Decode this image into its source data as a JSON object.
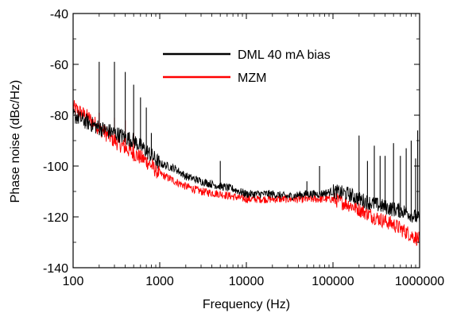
{
  "chart_data": {
    "type": "line",
    "xlabel": "Frequency (Hz)",
    "ylabel": "Phase noise (dBc/Hz)",
    "x_scale": "log",
    "xlim": [
      100,
      1000000
    ],
    "ylim": [
      -140,
      -40
    ],
    "x_ticks": [
      100,
      1000,
      10000,
      100000,
      1000000
    ],
    "x_tick_labels": [
      "100",
      "1000",
      "10000",
      "100000",
      "1000000"
    ],
    "y_ticks": [
      -140,
      -120,
      -100,
      -80,
      -60,
      -40
    ],
    "y_tick_labels": [
      "-140",
      "-120",
      "-100",
      "-80",
      "-60",
      "-40"
    ],
    "grid": false,
    "legend_position": "top-right",
    "series": [
      {
        "name": "DML 40 mA bias",
        "color": "#000000",
        "points": [
          [
            100,
            -80
          ],
          [
            150,
            -83
          ],
          [
            200,
            -85
          ],
          [
            300,
            -87
          ],
          [
            500,
            -90
          ],
          [
            700,
            -94
          ],
          [
            1000,
            -99
          ],
          [
            1500,
            -101
          ],
          [
            2000,
            -104
          ],
          [
            3000,
            -106
          ],
          [
            5000,
            -108
          ],
          [
            7000,
            -109
          ],
          [
            10000,
            -111
          ],
          [
            20000,
            -111
          ],
          [
            30000,
            -112
          ],
          [
            50000,
            -111
          ],
          [
            70000,
            -111
          ],
          [
            100000,
            -110
          ],
          [
            150000,
            -111
          ],
          [
            200000,
            -113
          ],
          [
            300000,
            -115
          ],
          [
            500000,
            -117
          ],
          [
            700000,
            -118
          ],
          [
            1000000,
            -121
          ]
        ],
        "spurs": [
          [
            200,
            -59
          ],
          [
            300,
            -59
          ],
          [
            400,
            -63
          ],
          [
            500,
            -68
          ],
          [
            600,
            -73
          ],
          [
            700,
            -77
          ],
          [
            800,
            -87
          ],
          [
            5000,
            -98
          ],
          [
            50000,
            -106
          ],
          [
            70000,
            -100
          ],
          [
            200000,
            -88
          ],
          [
            250000,
            -98
          ],
          [
            300000,
            -92
          ],
          [
            350000,
            -96
          ],
          [
            400000,
            -96
          ],
          [
            500000,
            -91
          ],
          [
            600000,
            -96
          ],
          [
            700000,
            -93
          ],
          [
            800000,
            -90
          ],
          [
            900000,
            -97
          ],
          [
            950000,
            -86
          ]
        ]
      },
      {
        "name": "MZM",
        "color": "#ff0000",
        "points": [
          [
            100,
            -77
          ],
          [
            150,
            -81
          ],
          [
            200,
            -85
          ],
          [
            300,
            -90
          ],
          [
            500,
            -95
          ],
          [
            700,
            -98
          ],
          [
            1000,
            -103
          ],
          [
            1500,
            -106
          ],
          [
            2000,
            -108
          ],
          [
            3000,
            -110
          ],
          [
            5000,
            -111
          ],
          [
            7000,
            -112
          ],
          [
            10000,
            -113
          ],
          [
            20000,
            -113
          ],
          [
            30000,
            -113
          ],
          [
            50000,
            -113
          ],
          [
            70000,
            -113
          ],
          [
            100000,
            -113
          ],
          [
            150000,
            -115
          ],
          [
            200000,
            -117
          ],
          [
            300000,
            -120
          ],
          [
            500000,
            -123
          ],
          [
            700000,
            -126
          ],
          [
            1000000,
            -129
          ]
        ],
        "spurs": [
          [
            200,
            -79
          ],
          [
            300,
            -81
          ],
          [
            400,
            -82
          ],
          [
            500,
            -87
          ]
        ]
      }
    ]
  }
}
